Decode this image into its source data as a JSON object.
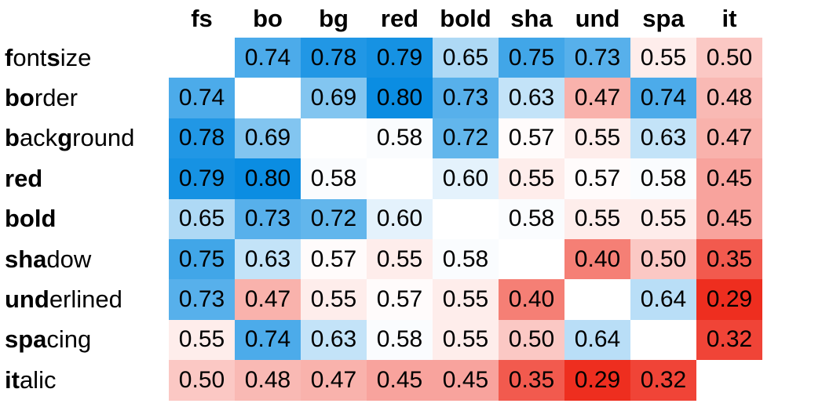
{
  "chart_data": {
    "type": "heatmap",
    "columns": [
      "fs",
      "bo",
      "bg",
      "red",
      "bold",
      "sha",
      "und",
      "spa",
      "it"
    ],
    "rows": [
      {
        "bold": "f",
        "rest": "ont ",
        "bold2": "s",
        "rest2": "ize"
      },
      {
        "bold": "bo",
        "rest": "rder",
        "bold2": "",
        "rest2": ""
      },
      {
        "bold": "b",
        "rest": "ack",
        "bold2": "g",
        "rest2": "round"
      },
      {
        "bold": "red",
        "rest": "",
        "bold2": "",
        "rest2": ""
      },
      {
        "bold": "bold",
        "rest": "",
        "bold2": "",
        "rest2": ""
      },
      {
        "bold": "sha",
        "rest": "dow",
        "bold2": "",
        "rest2": ""
      },
      {
        "bold": "und",
        "rest": "erlined",
        "bold2": "",
        "rest2": ""
      },
      {
        "bold": "spa",
        "rest": "cing",
        "bold2": "",
        "rest2": ""
      },
      {
        "bold": "it",
        "rest": "alic",
        "bold2": "",
        "rest2": ""
      }
    ],
    "values": [
      [
        null,
        0.74,
        0.78,
        0.79,
        0.65,
        0.75,
        0.73,
        0.55,
        0.5
      ],
      [
        0.74,
        null,
        0.69,
        0.8,
        0.73,
        0.63,
        0.47,
        0.74,
        0.48
      ],
      [
        0.78,
        0.69,
        null,
        0.58,
        0.72,
        0.57,
        0.55,
        0.63,
        0.47
      ],
      [
        0.79,
        0.8,
        0.58,
        null,
        0.6,
        0.55,
        0.57,
        0.58,
        0.45
      ],
      [
        0.65,
        0.73,
        0.72,
        0.6,
        null,
        0.58,
        0.55,
        0.55,
        0.45
      ],
      [
        0.75,
        0.63,
        0.57,
        0.55,
        0.58,
        null,
        0.4,
        0.5,
        0.35
      ],
      [
        0.73,
        0.47,
        0.55,
        0.57,
        0.55,
        0.4,
        null,
        0.64,
        0.29
      ],
      [
        0.55,
        0.74,
        0.63,
        0.58,
        0.55,
        0.5,
        0.64,
        null,
        0.32
      ],
      [
        0.5,
        0.48,
        0.47,
        0.45,
        0.45,
        0.35,
        0.29,
        0.32,
        null
      ]
    ],
    "color_scale": {
      "low": "#ee2e1f",
      "mid": "#ffffff",
      "high": "#0b8de2",
      "low_value": 0.29,
      "mid_value": 0.575,
      "high_value": 0.8
    },
    "value_format": "2dp"
  }
}
